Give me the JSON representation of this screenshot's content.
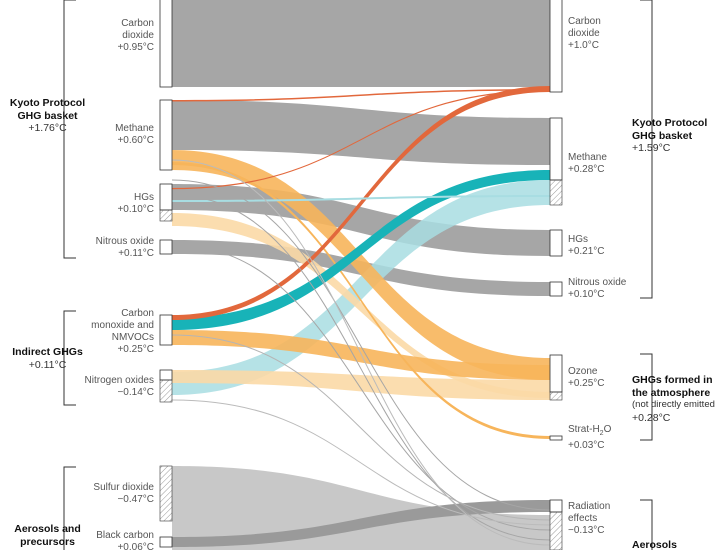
{
  "colors": {
    "gray": "#a6a6a6",
    "light_gray": "#c8c8c8",
    "orange": "#f7b55b",
    "light_orange": "#fbd9a6",
    "dark_orange": "#e2683c",
    "teal": "#18b3b8",
    "light_teal": "#a8dde2",
    "bracket": "#333333"
  },
  "left_groups": {
    "kyoto": {
      "title_1": "Kyoto Protocol",
      "title_2": "GHG basket",
      "value": "+1.76°C"
    },
    "indirect": {
      "title_1": "Indirect GHGs",
      "value": "+0.11°C"
    },
    "aerosols": {
      "title_1": "Aerosols and",
      "title_2": "precursors"
    }
  },
  "right_groups": {
    "kyoto": {
      "title_1": "Kyoto Protocol",
      "title_2": "GHG basket",
      "value": "+1.59°C"
    },
    "formed": {
      "title_1": "GHGs formed in",
      "title_2": "the atmosphere",
      "note": "(not directly emitted)",
      "value": "+0.28°C"
    },
    "aerosols": {
      "title_1": "Aerosols"
    }
  },
  "left_nodes": {
    "co2": {
      "line1": "Carbon",
      "line2": "dioxide",
      "value": "+0.95°C"
    },
    "methane": {
      "line1": "Methane",
      "value": "+0.60°C"
    },
    "hgs": {
      "line1": "HGs",
      "value": "+0.10°C"
    },
    "n2o": {
      "line1": "Nitrous oxide",
      "value": "+0.11°C"
    },
    "co": {
      "line1": "Carbon",
      "line2": "monoxide and",
      "line3": "NMVOCs",
      "value": "+0.25°C"
    },
    "nox": {
      "line1": "Nitrogen oxides",
      "value": "−0.14°C"
    },
    "so2": {
      "line1": "Sulfur dioxide",
      "value": "−0.47°C"
    },
    "bc": {
      "line1": "Black carbon",
      "value": "+0.06°C"
    }
  },
  "right_nodes": {
    "co2": {
      "line1": "Carbon",
      "line2": "dioxide",
      "value": "+1.0°C"
    },
    "methane": {
      "line1": "Methane",
      "value": "+0.28°C"
    },
    "hgs": {
      "line1": "HGs",
      "value": "+0.21°C"
    },
    "n2o": {
      "line1": "Nitrous oxide",
      "value": "+0.10°C"
    },
    "ozone": {
      "line1": "Ozone",
      "value": "+0.25°C"
    },
    "strat": {
      "line1_a": "Strat-H",
      "line1_sub": "2",
      "line1_b": "O",
      "value": "+0.03°C"
    },
    "rad": {
      "line1": "Radiation",
      "line2": "effects",
      "value": "−0.13°C"
    }
  }
}
